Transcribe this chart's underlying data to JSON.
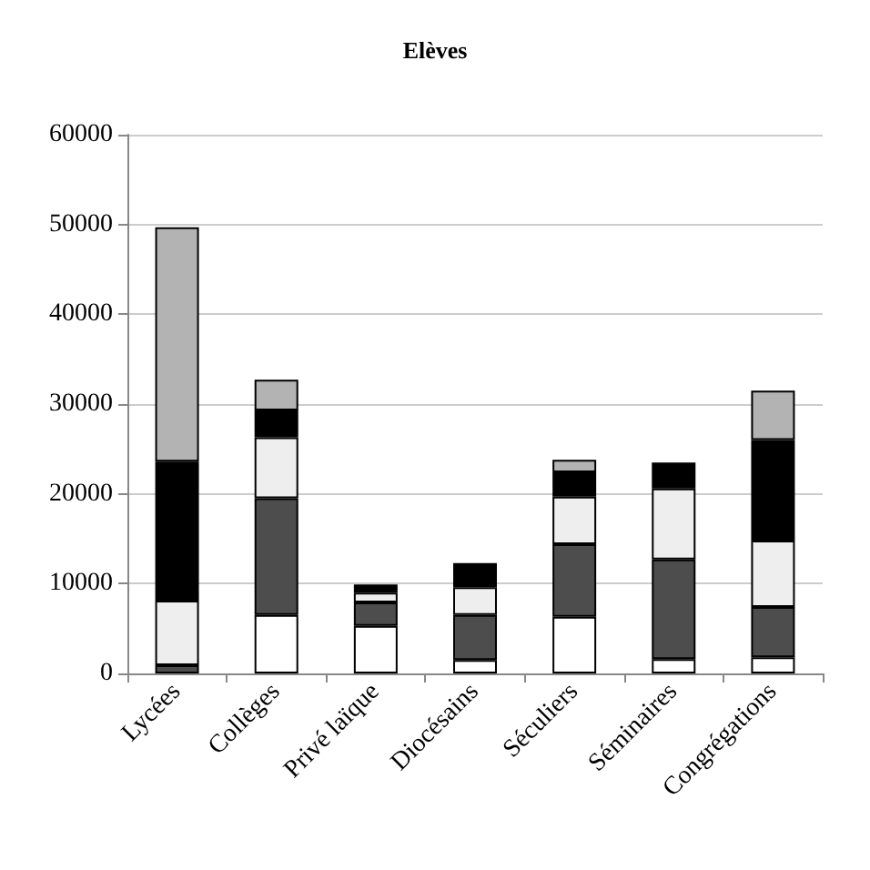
{
  "chart_data": {
    "type": "bar",
    "title": "Elèves",
    "stacked": true,
    "categories": [
      "Lycées",
      "Collèges",
      "Privé laïque",
      "Diocésains",
      "Séculiers",
      "Séminaires",
      "Congrégations"
    ],
    "series": [
      {
        "color": "#ffffff",
        "values": [
          null,
          6500,
          5300,
          1500,
          6300,
          1600,
          1800
        ]
      },
      {
        "color": "#4d4d4d",
        "values": [
          900,
          13000,
          2600,
          5000,
          8100,
          11100,
          5600
        ]
      },
      {
        "color": "#eeeeee",
        "values": [
          7200,
          6800,
          1100,
          3100,
          5300,
          7900,
          7400
        ]
      },
      {
        "color": "#000000",
        "values": [
          15500,
          3000,
          900,
          2700,
          2700,
          2900,
          11200
        ]
      },
      {
        "color": "#b3b3b3",
        "values": [
          26100,
          3400,
          null,
          null,
          1400,
          null,
          5500
        ]
      }
    ],
    "ylim": [
      0,
      60000
    ],
    "yticks": [
      0,
      10000,
      20000,
      30000,
      40000,
      50000,
      60000
    ],
    "grid": "y"
  }
}
